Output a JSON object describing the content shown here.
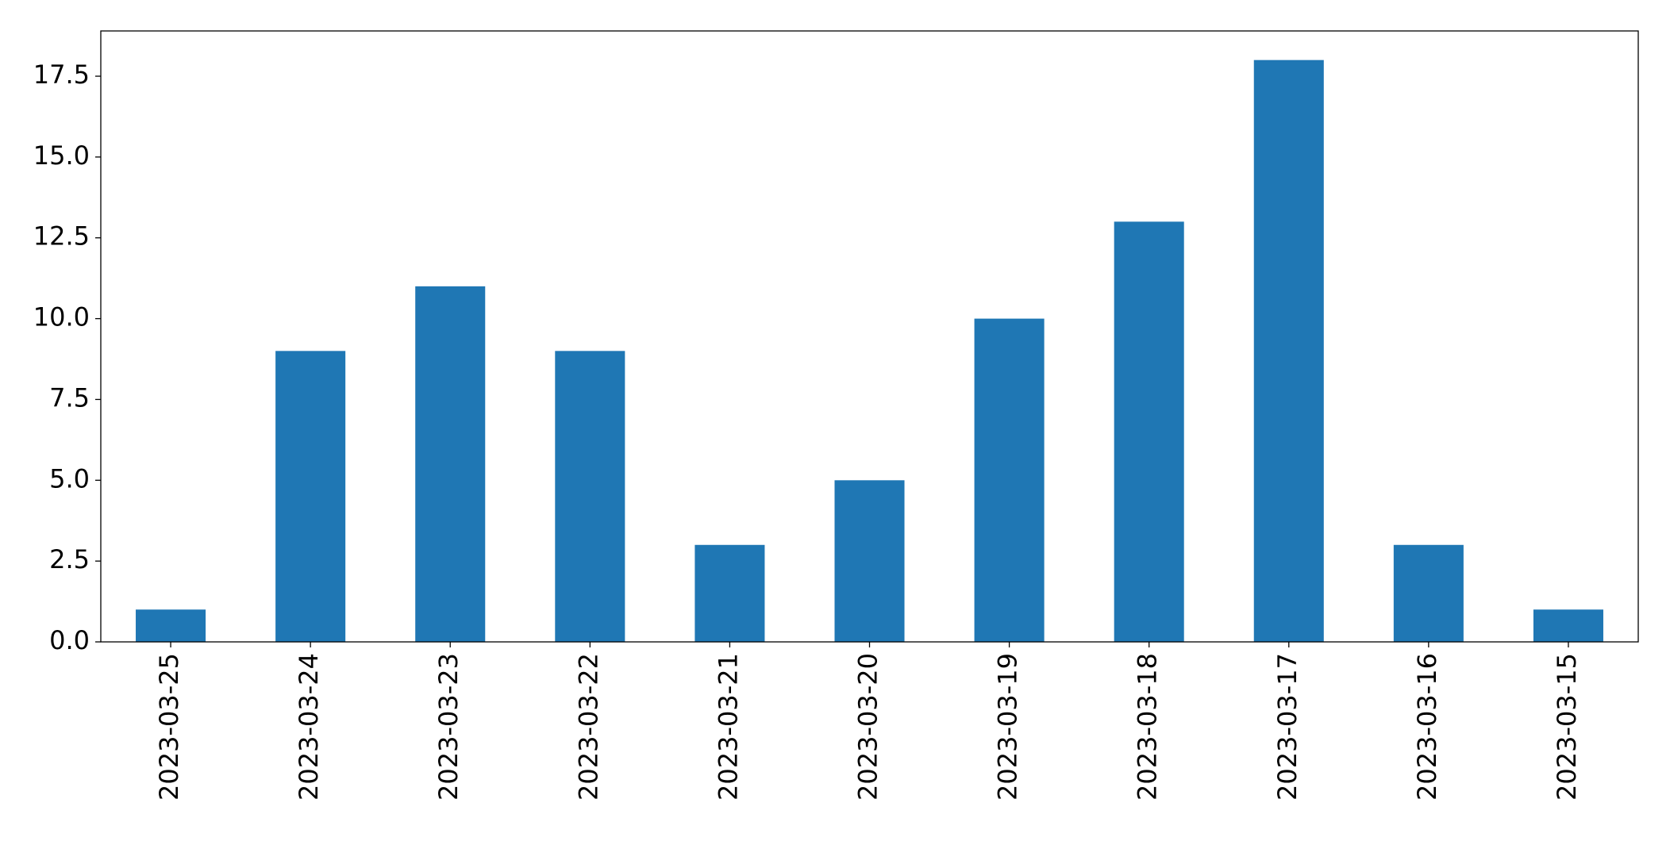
{
  "chart_data": {
    "type": "bar",
    "categories": [
      "2023-03-25",
      "2023-03-24",
      "2023-03-23",
      "2023-03-22",
      "2023-03-21",
      "2023-03-20",
      "2023-03-19",
      "2023-03-18",
      "2023-03-17",
      "2023-03-16",
      "2023-03-15"
    ],
    "values": [
      1,
      9,
      11,
      9,
      3,
      5,
      10,
      13,
      18,
      3,
      1
    ],
    "color": "#1f77b4",
    "ylim": [
      0,
      18.9
    ],
    "yticks": [
      {
        "value": 0,
        "label": "0.0"
      },
      2.5,
      {
        "value": 5,
        "label": "5.0"
      },
      7.5,
      {
        "value": 10,
        "label": "10.0"
      },
      12.5,
      {
        "value": 15,
        "label": "15.0"
      },
      17.5
    ],
    "grid": false
  }
}
